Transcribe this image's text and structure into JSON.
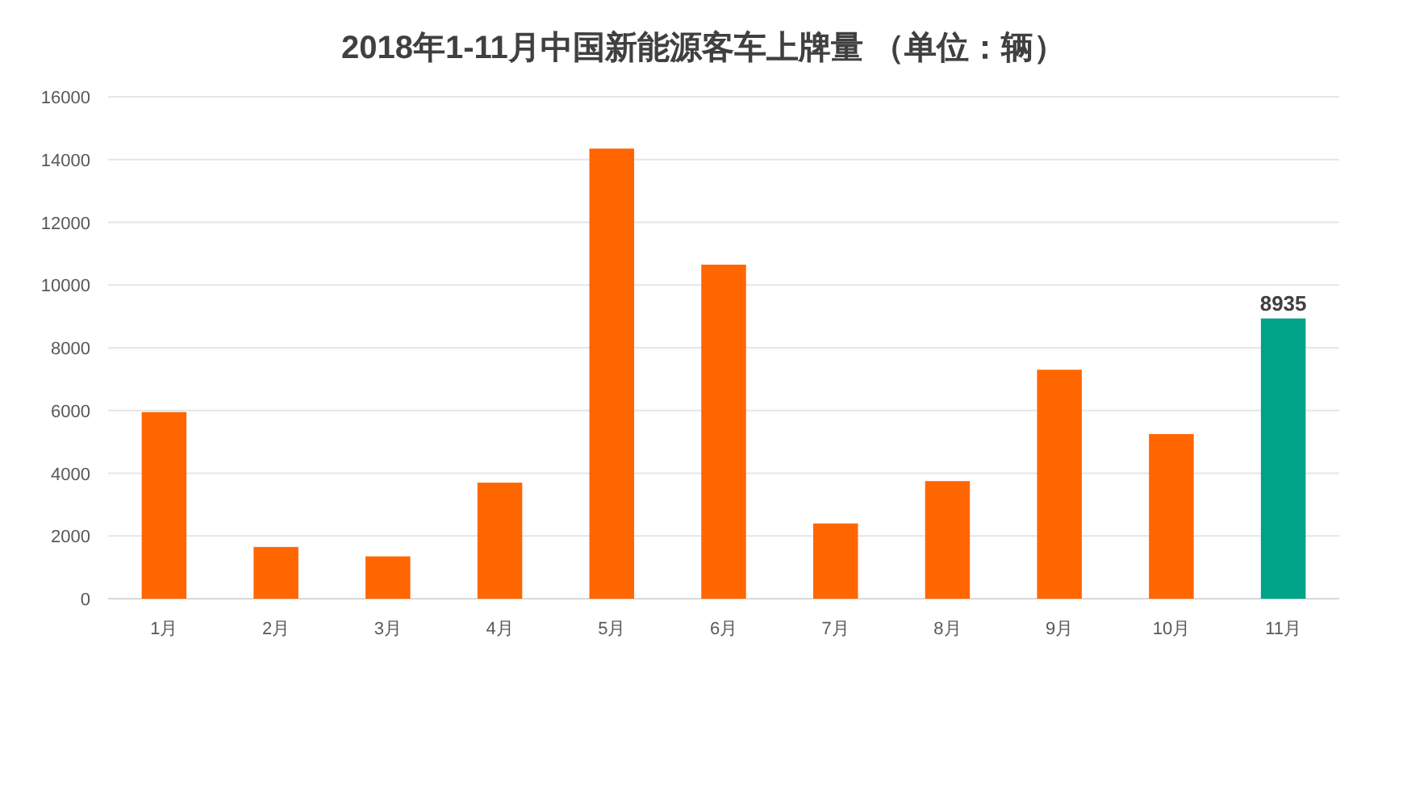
{
  "chart_data": {
    "type": "bar",
    "title": "2018年1-11月中国新能源客车上牌量 （单位：辆）",
    "categories": [
      "1月",
      "2月",
      "3月",
      "4月",
      "5月",
      "6月",
      "7月",
      "8月",
      "9月",
      "10月",
      "11月"
    ],
    "values": [
      5950,
      1650,
      1350,
      3700,
      14350,
      10650,
      2400,
      3750,
      7300,
      5250,
      8935
    ],
    "colors": [
      "#ff6600",
      "#ff6600",
      "#ff6600",
      "#ff6600",
      "#ff6600",
      "#ff6600",
      "#ff6600",
      "#ff6600",
      "#ff6600",
      "#ff6600",
      "#00a388"
    ],
    "value_labels": [
      null,
      null,
      null,
      null,
      null,
      null,
      null,
      null,
      null,
      null,
      "8935"
    ],
    "ylim": [
      0,
      16000
    ],
    "yticks": [
      0,
      2000,
      4000,
      6000,
      8000,
      10000,
      12000,
      14000,
      16000
    ],
    "grid": "y"
  }
}
